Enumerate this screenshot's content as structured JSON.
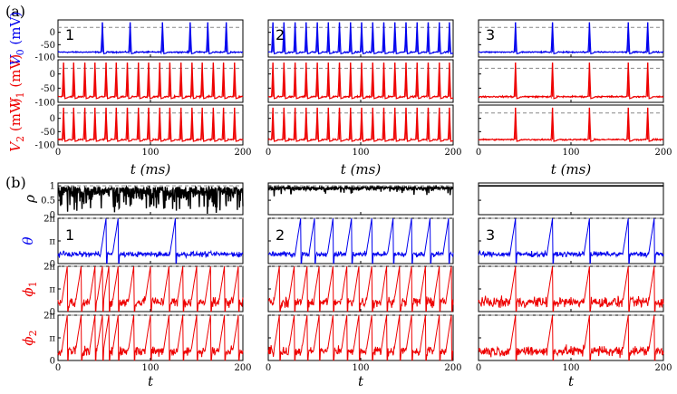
{
  "panel_labels": {
    "a": "(a)",
    "b": "(b)"
  },
  "colors": {
    "v0": "#0000ee",
    "v1": "#ee0000",
    "v2": "#ee0000",
    "rho": "#000000",
    "theta": "#0000ee",
    "phi1": "#ee0000",
    "phi2": "#ee0000",
    "ref": "#888888"
  },
  "chart_data": [
    {
      "panel": "(a)",
      "type": "line",
      "columns": [
        "1",
        "2",
        "3"
      ],
      "x": {
        "label": "t (ms)",
        "range": [
          0,
          200
        ],
        "ticks": [
          "0",
          "100",
          "200"
        ]
      },
      "y_axes": [
        {
          "key": "v0",
          "symbol": "V",
          "subscript": "0",
          "unit": "(mV)",
          "range": [
            -100,
            50
          ],
          "ticks": [
            "0",
            "-50",
            "-100"
          ],
          "reference_line": 20
        },
        {
          "key": "v1",
          "symbol": "V",
          "subscript": "1",
          "unit": "(mV)",
          "range": [
            -100,
            50
          ],
          "ticks": [
            "0",
            "-50",
            "-100"
          ],
          "reference_line": 20
        },
        {
          "key": "v2",
          "symbol": "V",
          "subscript": "2",
          "unit": "(mV)",
          "range": [
            -100,
            50
          ],
          "ticks": [
            "0",
            "-50",
            "-100"
          ],
          "reference_line": 20
        }
      ],
      "spike_times_ms": {
        "1": {
          "v0": [
            48,
            78,
            113,
            143,
            162,
            182
          ],
          "v1": [
            6,
            17,
            29,
            40,
            52,
            63,
            75,
            87,
            98,
            110,
            121,
            133,
            145,
            156,
            168,
            179,
            191
          ],
          "v2": [
            6,
            17,
            29,
            40,
            52,
            63,
            75,
            87,
            98,
            110,
            121,
            133,
            145,
            156,
            168,
            179,
            191
          ]
        },
        "2": {
          "v0": [
            5,
            17,
            29,
            41,
            53,
            65,
            77,
            89,
            101,
            113,
            125,
            137,
            149,
            161,
            173,
            185,
            196
          ],
          "v1": [
            5,
            17,
            29,
            41,
            53,
            65,
            77,
            89,
            101,
            113,
            125,
            137,
            149,
            161,
            173,
            185,
            196
          ],
          "v2": [
            5,
            17,
            29,
            41,
            53,
            65,
            77,
            89,
            101,
            113,
            125,
            137,
            149,
            161,
            173,
            185,
            196
          ]
        },
        "3": {
          "v0": [
            40,
            80,
            120,
            162,
            183
          ],
          "v1": [
            40,
            80,
            120,
            162,
            183
          ],
          "v2": [
            40,
            80,
            120,
            162,
            183
          ]
        }
      },
      "spike_peak_mV": 40,
      "rest_mV": -80
    },
    {
      "panel": "(b)",
      "type": "line",
      "columns": [
        "1",
        "2",
        "3"
      ],
      "x": {
        "label": "t",
        "range": [
          0,
          200
        ],
        "ticks": [
          "0",
          "100",
          "200"
        ]
      },
      "y_axes": [
        {
          "key": "rho",
          "symbol": "ρ",
          "subscript": "",
          "range": [
            0,
            1.1
          ],
          "ticks": [
            "1",
            "0.5",
            "0"
          ],
          "reference_line": 1
        },
        {
          "key": "theta",
          "symbol": "θ",
          "subscript": "",
          "range": [
            0,
            6.2832
          ],
          "ticks": [
            "2π",
            "π",
            "0"
          ],
          "reference_line": 6.2832
        },
        {
          "key": "phi1",
          "symbol": "ϕ",
          "subscript": "1",
          "range": [
            0,
            6.2832
          ],
          "ticks": [
            "2π",
            "π",
            "0"
          ],
          "reference_line": 6.2832
        },
        {
          "key": "phi2",
          "symbol": "ϕ",
          "subscript": "2",
          "range": [
            0,
            6.2832
          ],
          "ticks": [
            "2π",
            "π",
            "0"
          ],
          "reference_line": 6.2832
        }
      ],
      "approx_values": {
        "rho": {
          "1": {
            "mean": 0.75,
            "min": 0.0,
            "max": 0.97
          },
          "2": {
            "mean": 0.9,
            "min": 0.55,
            "max": 0.97
          },
          "3": {
            "mean": 1.0,
            "min": 1.0,
            "max": 1.0
          }
        },
        "theta_slips": {
          "1": [
            52,
            65,
            127
          ],
          "2": [
            35,
            50,
            70,
            90,
            112,
            135,
            155,
            175,
            195
          ],
          "3": [
            40,
            80,
            120,
            162,
            190
          ]
        },
        "phi_slips": {
          "1": [
            10,
            25,
            40,
            48,
            55,
            65,
            82,
            100,
            120,
            135,
            150,
            165,
            180,
            195
          ],
          "2": [
            12,
            28,
            42,
            55,
            70,
            85,
            98,
            112,
            128,
            142,
            155,
            170,
            185,
            198
          ],
          "3": [
            40,
            80,
            120,
            162,
            190
          ]
        },
        "baseline": 1.3
      }
    }
  ]
}
